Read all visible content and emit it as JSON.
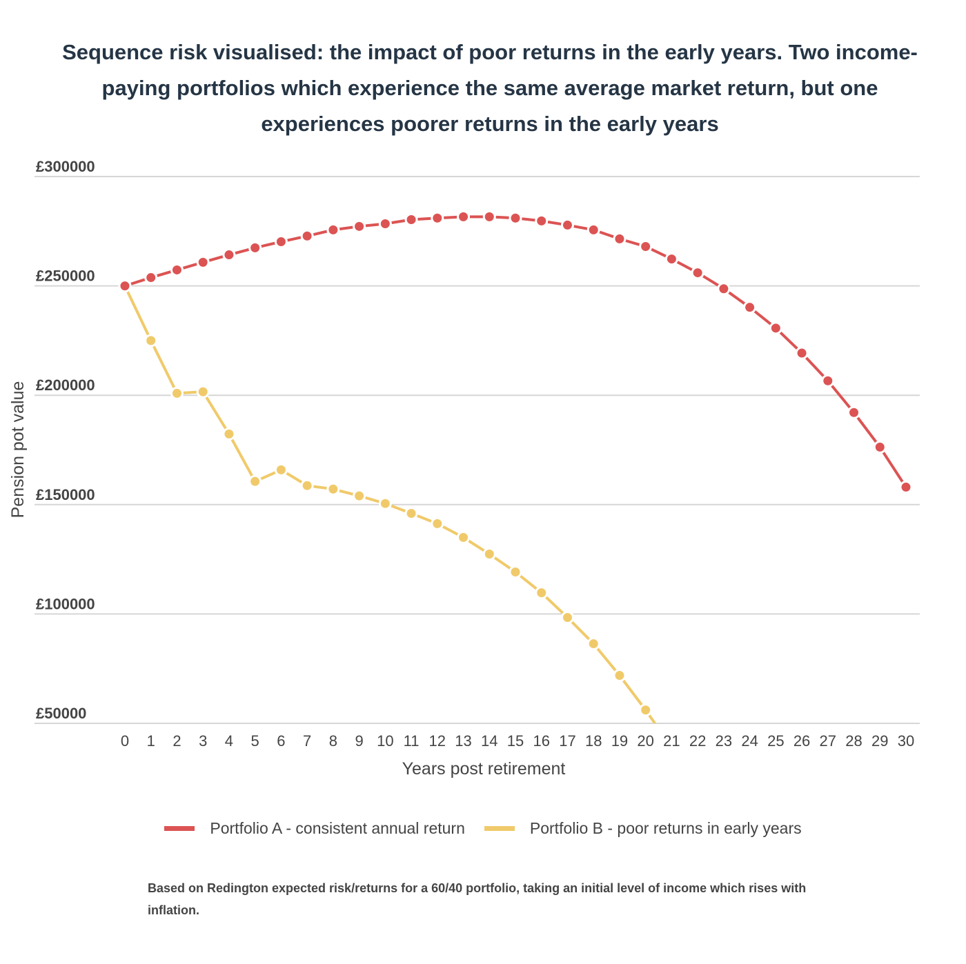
{
  "chart_data": {
    "type": "line",
    "title": "Sequence risk visualised: the impact of poor returns in the early years. Two income-paying portfolios which experience the same average market return, but one experiences poorer returns in the early years",
    "xlabel": "Years post retirement",
    "ylabel": "Pension pot value",
    "x": [
      0,
      1,
      2,
      3,
      4,
      5,
      6,
      7,
      8,
      9,
      10,
      11,
      12,
      13,
      14,
      15,
      16,
      17,
      18,
      19,
      20,
      21,
      22,
      23,
      24,
      25,
      26,
      27,
      28,
      29,
      30
    ],
    "ylim": [
      50000,
      300000
    ],
    "yticks": [
      "£50000",
      "£100000",
      "£150000",
      "£200000",
      "£250000",
      "£300000"
    ],
    "ytick_values": [
      50000,
      100000,
      150000,
      200000,
      250000,
      300000
    ],
    "grid": true,
    "legend_position": "bottom",
    "series": [
      {
        "name": "Portfolio A - consistent annual return",
        "color": "#dc5353",
        "values": [
          250000,
          253800,
          257300,
          260800,
          264200,
          267400,
          270200,
          272800,
          275600,
          277200,
          278400,
          280300,
          281000,
          281600,
          281600,
          281000,
          279700,
          277800,
          275600,
          271500,
          268000,
          262300,
          256000,
          248700,
          240200,
          230700,
          219300,
          206600,
          192100,
          176300,
          158000
        ]
      },
      {
        "name": "Portfolio B - poor returns in early years",
        "color": "#f0ca6a",
        "values": [
          250000,
          225000,
          200900,
          201600,
          182300,
          160600,
          165900,
          158700,
          157100,
          154000,
          150500,
          146000,
          141300,
          135000,
          127400,
          119200,
          109700,
          98400,
          86400,
          71900,
          56100,
          39000,
          null,
          null,
          null,
          null,
          null,
          null,
          null,
          null,
          null
        ]
      }
    ],
    "footnote": "Based on Redington expected risk/returns for a 60/40 portfolio, taking an initial level of income which rises with inflation."
  }
}
